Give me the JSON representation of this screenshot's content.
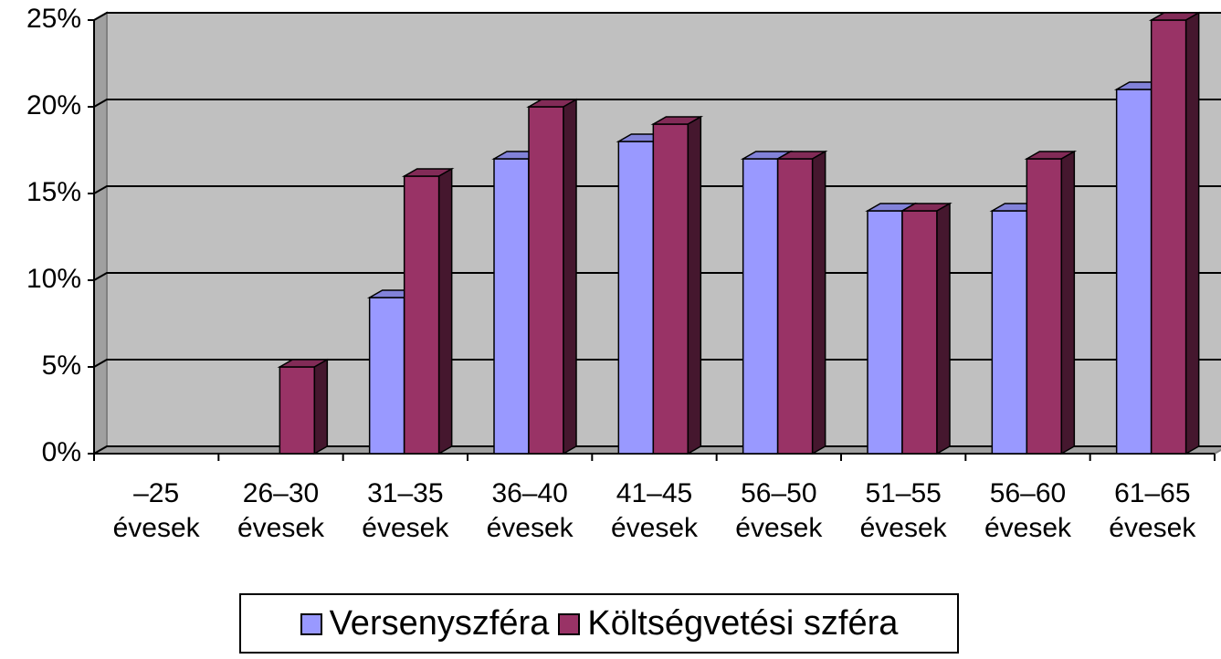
{
  "chart_data": {
    "type": "bar3d",
    "categories": [
      "–25 évesek",
      "26–30 évesek",
      "31–35 évesek",
      "36–40 évesek",
      "41–45 évesek",
      "56–50 évesek",
      "51–55 évesek",
      "56–60 évesek",
      "61–65 évesek"
    ],
    "series": [
      {
        "name": "Versenyszféra",
        "color": "#9999ff",
        "values": [
          0,
          0,
          9,
          17,
          18,
          17,
          14,
          14,
          21
        ]
      },
      {
        "name": "Költségvetési szféra",
        "color": "#993366",
        "values": [
          0,
          5,
          16,
          20,
          19,
          17,
          14,
          17,
          25
        ]
      }
    ],
    "ylim": [
      0,
      25
    ],
    "yticks": [
      {
        "value": 0,
        "label": "0%"
      },
      {
        "value": 5,
        "label": "5%"
      },
      {
        "value": 10,
        "label": "10%"
      },
      {
        "value": 15,
        "label": "15%"
      },
      {
        "value": 20,
        "label": "20%"
      },
      {
        "value": 25,
        "label": "25%"
      }
    ],
    "grid": true,
    "legend": "bottom"
  }
}
